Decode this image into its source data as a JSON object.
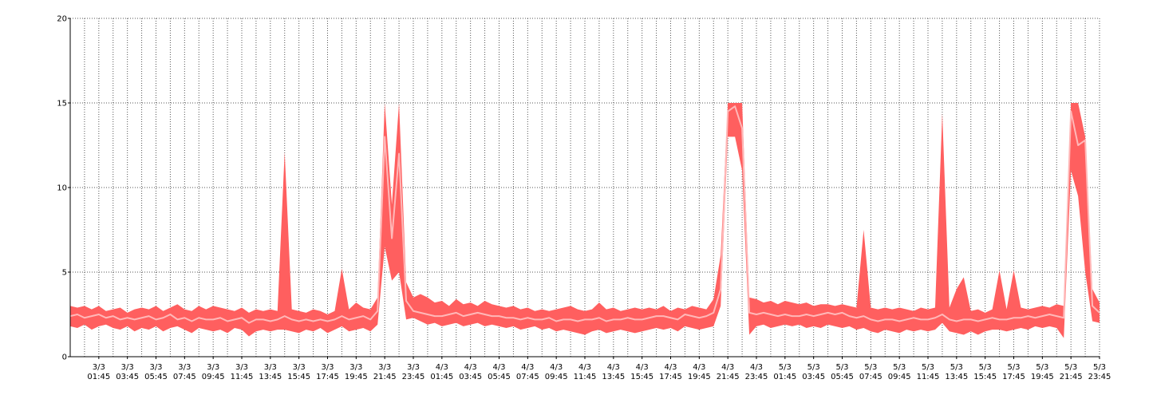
{
  "chart_data": {
    "type": "band-line",
    "ylim": [
      0,
      20
    ],
    "yticks": [
      0,
      5,
      10,
      15,
      20
    ],
    "xlim": [
      0,
      144
    ],
    "grid": true,
    "xticks": [
      {
        "value": 4,
        "date": "3/3",
        "time": "01:45"
      },
      {
        "value": 8,
        "date": "3/3",
        "time": "03:45"
      },
      {
        "value": 12,
        "date": "3/3",
        "time": "05:45"
      },
      {
        "value": 16,
        "date": "3/3",
        "time": "07:45"
      },
      {
        "value": 20,
        "date": "3/3",
        "time": "09:45"
      },
      {
        "value": 24,
        "date": "3/3",
        "time": "11:45"
      },
      {
        "value": 28,
        "date": "3/3",
        "time": "13:45"
      },
      {
        "value": 32,
        "date": "3/3",
        "time": "15:45"
      },
      {
        "value": 36,
        "date": "3/3",
        "time": "17:45"
      },
      {
        "value": 40,
        "date": "3/3",
        "time": "19:45"
      },
      {
        "value": 44,
        "date": "3/3",
        "time": "21:45"
      },
      {
        "value": 48,
        "date": "3/3",
        "time": "23:45"
      },
      {
        "value": 52,
        "date": "4/3",
        "time": "01:45"
      },
      {
        "value": 56,
        "date": "4/3",
        "time": "03:45"
      },
      {
        "value": 60,
        "date": "4/3",
        "time": "05:45"
      },
      {
        "value": 64,
        "date": "4/3",
        "time": "07:45"
      },
      {
        "value": 68,
        "date": "4/3",
        "time": "09:45"
      },
      {
        "value": 72,
        "date": "4/3",
        "time": "11:45"
      },
      {
        "value": 76,
        "date": "4/3",
        "time": "13:45"
      },
      {
        "value": 80,
        "date": "4/3",
        "time": "15:45"
      },
      {
        "value": 84,
        "date": "4/3",
        "time": "17:45"
      },
      {
        "value": 88,
        "date": "4/3",
        "time": "19:45"
      },
      {
        "value": 92,
        "date": "4/3",
        "time": "21:45"
      },
      {
        "value": 96,
        "date": "4/3",
        "time": "23:45"
      },
      {
        "value": 100,
        "date": "5/3",
        "time": "01:45"
      },
      {
        "value": 104,
        "date": "5/3",
        "time": "03:45"
      },
      {
        "value": 108,
        "date": "5/3",
        "time": "05:45"
      },
      {
        "value": 112,
        "date": "5/3",
        "time": "07:45"
      },
      {
        "value": 116,
        "date": "5/3",
        "time": "09:45"
      },
      {
        "value": 120,
        "date": "5/3",
        "time": "11:45"
      },
      {
        "value": 124,
        "date": "5/3",
        "time": "13:45"
      },
      {
        "value": 128,
        "date": "5/3",
        "time": "15:45"
      },
      {
        "value": 132,
        "date": "5/3",
        "time": "17:45"
      },
      {
        "value": 136,
        "date": "5/3",
        "time": "19:45"
      },
      {
        "value": 140,
        "date": "5/3",
        "time": "21:45"
      },
      {
        "value": 144,
        "date": "5/3",
        "time": "23:45"
      }
    ],
    "band": {
      "color": "#ff5f5f",
      "high": [
        3.0,
        2.9,
        3.0,
        2.8,
        3.0,
        2.7,
        2.8,
        2.9,
        2.6,
        2.8,
        2.9,
        2.8,
        3.0,
        2.7,
        2.9,
        3.1,
        2.8,
        2.7,
        3.0,
        2.8,
        3.0,
        2.9,
        2.8,
        2.7,
        2.9,
        2.6,
        2.8,
        2.7,
        2.8,
        2.7,
        12.1,
        2.8,
        2.7,
        2.6,
        2.8,
        2.7,
        2.5,
        2.7,
        5.2,
        2.8,
        3.2,
        2.9,
        2.8,
        3.5,
        15,
        9,
        15,
        4.4,
        3.5,
        3.7,
        3.5,
        3.2,
        3.3,
        3.0,
        3.4,
        3.1,
        3.2,
        3.0,
        3.3,
        3.1,
        3.0,
        2.9,
        3.0,
        2.8,
        2.9,
        2.7,
        2.8,
        2.7,
        2.8,
        2.9,
        3.0,
        2.8,
        2.7,
        2.8,
        3.2,
        2.8,
        2.9,
        2.7,
        2.8,
        2.9,
        2.8,
        2.9,
        2.8,
        3.0,
        2.7,
        2.9,
        2.8,
        3.0,
        2.9,
        2.8,
        3.4,
        6,
        15,
        15,
        15,
        3.5,
        3.4,
        3.2,
        3.3,
        3.1,
        3.3,
        3.2,
        3.1,
        3.2,
        3.0,
        3.1,
        3.1,
        3.0,
        3.1,
        3.0,
        2.9,
        7.5,
        2.9,
        2.8,
        2.9,
        2.8,
        2.9,
        2.8,
        2.7,
        2.9,
        2.8,
        2.9,
        14.4,
        2.9,
        4.0,
        4.7,
        2.7,
        2.8,
        2.6,
        2.8,
        5.1,
        2.8,
        5.1,
        2.9,
        2.8,
        2.9,
        3.0,
        2.9,
        3.1,
        3.0,
        15,
        15,
        13,
        4,
        3.2
      ],
      "low": [
        1.8,
        1.7,
        1.9,
        1.6,
        1.8,
        1.9,
        1.7,
        1.6,
        1.8,
        1.5,
        1.7,
        1.6,
        1.8,
        1.5,
        1.7,
        1.8,
        1.6,
        1.4,
        1.7,
        1.6,
        1.5,
        1.6,
        1.4,
        1.7,
        1.6,
        1.2,
        1.5,
        1.6,
        1.5,
        1.6,
        1.6,
        1.5,
        1.4,
        1.6,
        1.5,
        1.7,
        1.4,
        1.6,
        1.8,
        1.5,
        1.6,
        1.7,
        1.5,
        1.9,
        6.5,
        4.5,
        5,
        2.2,
        2.3,
        2.1,
        1.9,
        2.0,
        1.8,
        1.9,
        2.0,
        1.8,
        1.9,
        2.0,
        1.8,
        1.9,
        1.8,
        1.7,
        1.8,
        1.6,
        1.7,
        1.8,
        1.6,
        1.7,
        1.5,
        1.6,
        1.5,
        1.4,
        1.3,
        1.5,
        1.6,
        1.4,
        1.5,
        1.6,
        1.5,
        1.4,
        1.5,
        1.6,
        1.7,
        1.6,
        1.7,
        1.5,
        1.8,
        1.7,
        1.6,
        1.7,
        1.8,
        3,
        13,
        13,
        11,
        1.3,
        1.8,
        1.9,
        1.7,
        1.8,
        1.9,
        1.8,
        1.9,
        1.7,
        1.8,
        1.7,
        1.9,
        1.8,
        1.7,
        1.8,
        1.6,
        1.7,
        1.5,
        1.4,
        1.6,
        1.5,
        1.4,
        1.6,
        1.5,
        1.6,
        1.5,
        1.6,
        2.0,
        1.5,
        1.4,
        1.3,
        1.5,
        1.3,
        1.5,
        1.6,
        1.6,
        1.5,
        1.6,
        1.7,
        1.6,
        1.8,
        1.7,
        1.8,
        1.7,
        1.1,
        11,
        9.5,
        5,
        2.1,
        2.0
      ]
    },
    "series": [
      {
        "color": "#ffb8b8",
        "values": [
          2.4,
          2.5,
          2.3,
          2.4,
          2.5,
          2.3,
          2.4,
          2.2,
          2.3,
          2.2,
          2.3,
          2.4,
          2.2,
          2.3,
          2.5,
          2.2,
          2.3,
          2.1,
          2.3,
          2.2,
          2.2,
          2.3,
          2.1,
          2.2,
          2.3,
          2.0,
          2.2,
          2.2,
          2.1,
          2.2,
          2.4,
          2.2,
          2.1,
          2.2,
          2.1,
          2.2,
          2.1,
          2.2,
          2.4,
          2.2,
          2.3,
          2.4,
          2.2,
          2.7,
          13,
          7,
          12,
          3.3,
          2.7,
          2.6,
          2.5,
          2.4,
          2.4,
          2.5,
          2.6,
          2.4,
          2.5,
          2.6,
          2.5,
          2.4,
          2.4,
          2.3,
          2.3,
          2.2,
          2.3,
          2.2,
          2.2,
          2.3,
          2.1,
          2.2,
          2.2,
          2.1,
          2.2,
          2.2,
          2.3,
          2.1,
          2.2,
          2.2,
          2.3,
          2.2,
          2.2,
          2.3,
          2.4,
          2.4,
          2.3,
          2.2,
          2.5,
          2.4,
          2.3,
          2.4,
          2.6,
          4,
          14.5,
          14.8,
          13.5,
          2.6,
          2.5,
          2.6,
          2.5,
          2.4,
          2.5,
          2.4,
          2.4,
          2.5,
          2.4,
          2.5,
          2.6,
          2.5,
          2.6,
          2.4,
          2.3,
          2.4,
          2.2,
          2.1,
          2.2,
          2.2,
          2.1,
          2.2,
          2.3,
          2.2,
          2.2,
          2.3,
          2.5,
          2.2,
          2.1,
          2.2,
          2.2,
          2.1,
          2.2,
          2.3,
          2.2,
          2.2,
          2.3,
          2.3,
          2.4,
          2.3,
          2.4,
          2.5,
          2.4,
          2.3,
          14.5,
          12.5,
          12.8,
          3,
          2.6
        ]
      }
    ]
  }
}
